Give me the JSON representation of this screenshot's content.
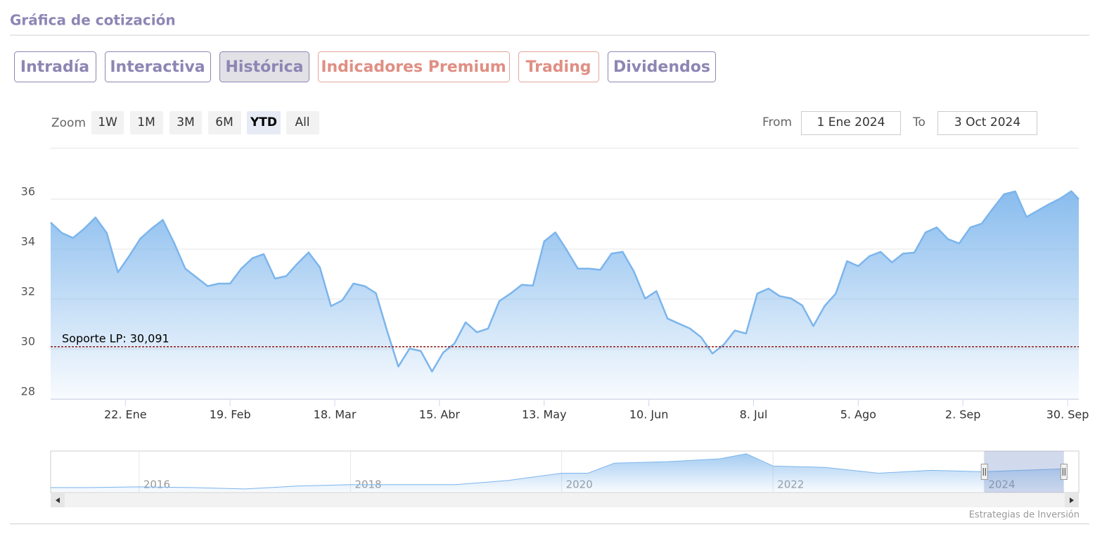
{
  "header": {
    "title": "Gráfica de cotización"
  },
  "tabs": [
    "Intradía",
    "Interactiva",
    "Histórica",
    "Indicadores Premium",
    "Trading",
    "Dividendos"
  ],
  "range_selector": {
    "zoom_label": "Zoom",
    "buttons": [
      "1W",
      "1M",
      "3M",
      "6M",
      "YTD",
      "All"
    ],
    "from_label": "From",
    "from": "1 Ene 2024",
    "to_label": "To",
    "to": "3 Oct 2024"
  },
  "credits": "Estrategias de Inversión",
  "chart_data": [
    {
      "type": "area",
      "color": "#7cb5ec",
      "grid": true,
      "x": [
        "2024-01-02",
        "2024-01-05",
        "2024-01-08",
        "2024-01-11",
        "2024-01-14",
        "2024-01-17",
        "2024-01-20",
        "2024-01-23",
        "2024-01-26",
        "2024-01-29",
        "2024-02-01",
        "2024-02-04",
        "2024-02-07",
        "2024-02-10",
        "2024-02-13",
        "2024-02-16",
        "2024-02-19",
        "2024-02-22",
        "2024-02-25",
        "2024-02-28",
        "2024-03-02",
        "2024-03-05",
        "2024-03-08",
        "2024-03-11",
        "2024-03-14",
        "2024-03-17",
        "2024-03-20",
        "2024-03-23",
        "2024-03-26",
        "2024-03-29",
        "2024-04-01",
        "2024-04-04",
        "2024-04-07",
        "2024-04-10",
        "2024-04-13",
        "2024-04-16",
        "2024-04-19",
        "2024-04-22",
        "2024-04-25",
        "2024-04-28",
        "2024-05-01",
        "2024-05-04",
        "2024-05-07",
        "2024-05-10",
        "2024-05-13",
        "2024-05-16",
        "2024-05-19",
        "2024-05-22",
        "2024-05-25",
        "2024-05-28",
        "2024-05-31",
        "2024-06-03",
        "2024-06-06",
        "2024-06-09",
        "2024-06-12",
        "2024-06-15",
        "2024-06-18",
        "2024-06-21",
        "2024-06-24",
        "2024-06-27",
        "2024-06-30",
        "2024-07-03",
        "2024-07-06",
        "2024-07-09",
        "2024-07-12",
        "2024-07-15",
        "2024-07-18",
        "2024-07-21",
        "2024-07-24",
        "2024-07-27",
        "2024-07-30",
        "2024-08-02",
        "2024-08-05",
        "2024-08-08",
        "2024-08-11",
        "2024-08-14",
        "2024-08-17",
        "2024-08-20",
        "2024-08-23",
        "2024-08-26",
        "2024-08-29",
        "2024-09-01",
        "2024-09-04",
        "2024-09-07",
        "2024-09-10",
        "2024-09-13",
        "2024-09-16",
        "2024-09-19",
        "2024-09-22",
        "2024-09-25",
        "2024-09-28",
        "2024-10-01",
        "2024-10-03"
      ],
      "values": [
        35.07,
        34.65,
        34.45,
        34.82,
        35.27,
        34.65,
        33.07,
        33.72,
        34.42,
        34.82,
        35.17,
        34.26,
        33.22,
        32.87,
        32.52,
        32.62,
        32.62,
        33.22,
        33.64,
        33.8,
        32.82,
        32.92,
        33.42,
        33.87,
        33.27,
        31.72,
        31.95,
        32.62,
        32.52,
        32.24,
        30.72,
        29.3,
        30.02,
        29.92,
        29.1,
        29.86,
        30.22,
        31.07,
        30.67,
        30.82,
        31.92,
        32.22,
        32.57,
        32.54,
        34.31,
        34.67,
        33.97,
        33.22,
        33.22,
        33.17,
        33.82,
        33.89,
        33.1,
        32.02,
        32.32,
        31.22,
        31.02,
        30.82,
        30.47,
        29.82,
        30.17,
        30.74,
        30.62,
        32.22,
        32.42,
        32.12,
        32.03,
        31.75,
        30.92,
        31.72,
        32.22,
        33.52,
        33.32,
        33.72,
        33.89,
        33.47,
        33.82,
        33.86,
        34.67,
        34.87,
        34.4,
        34.23,
        34.87,
        35.02,
        35.62,
        36.2,
        36.31,
        35.29,
        35.54,
        35.8,
        36.02,
        36.32,
        36.0
      ],
      "xlim": [
        "2024-01-02",
        "2024-10-03"
      ],
      "ylim": [
        28,
        38.03
      ],
      "yticks": [
        28,
        30,
        32,
        34,
        36
      ],
      "xticks": [
        {
          "value": "2024-01-22",
          "label": "22. Ene"
        },
        {
          "value": "2024-02-19",
          "label": "19. Feb"
        },
        {
          "value": "2024-03-18",
          "label": "18. Mar"
        },
        {
          "value": "2024-04-15",
          "label": "15. Abr"
        },
        {
          "value": "2024-05-13",
          "label": "13. May"
        },
        {
          "value": "2024-06-10",
          "label": "10. Jun"
        },
        {
          "value": "2024-07-08",
          "label": "8. Jul"
        },
        {
          "value": "2024-08-05",
          "label": "5. Ago"
        },
        {
          "value": "2024-09-02",
          "label": "2. Sep"
        },
        {
          "value": "2024-09-30",
          "label": "30. Sep"
        }
      ],
      "annotations": [
        {
          "label": "Soporte LP: 30,091",
          "value": 30.091,
          "color": "#8b1a1a"
        }
      ]
    },
    {
      "type": "area",
      "color": "#7cb5ec",
      "x": [
        "2015-03",
        "2015-07",
        "2016-01",
        "2016-07",
        "2017-01",
        "2017-07",
        "2018-01",
        "2018-07",
        "2019-01",
        "2019-07",
        "2020-01",
        "2020-04",
        "2020-07",
        "2021-01",
        "2021-07",
        "2021-10",
        "2022-01",
        "2022-07",
        "2023-01",
        "2023-07",
        "2024-01",
        "2024-10"
      ],
      "values": [
        7.5,
        7.5,
        8.75,
        7.5,
        5,
        10,
        12.5,
        12.5,
        12.5,
        20,
        32.5,
        32.5,
        50,
        52.5,
        57.5,
        66.25,
        45,
        42.5,
        32.5,
        37.5,
        35,
        40
      ],
      "xlim": [
        "2015-03",
        "2024-10"
      ],
      "ylim": [
        0,
        71
      ],
      "xticks": [
        {
          "value": "2016-01",
          "label": "2016"
        },
        {
          "value": "2018-01",
          "label": "2018"
        },
        {
          "value": "2020-01",
          "label": "2020"
        },
        {
          "value": "2022-01",
          "label": "2022"
        },
        {
          "value": "2024-01",
          "label": "2024"
        }
      ]
    }
  ]
}
